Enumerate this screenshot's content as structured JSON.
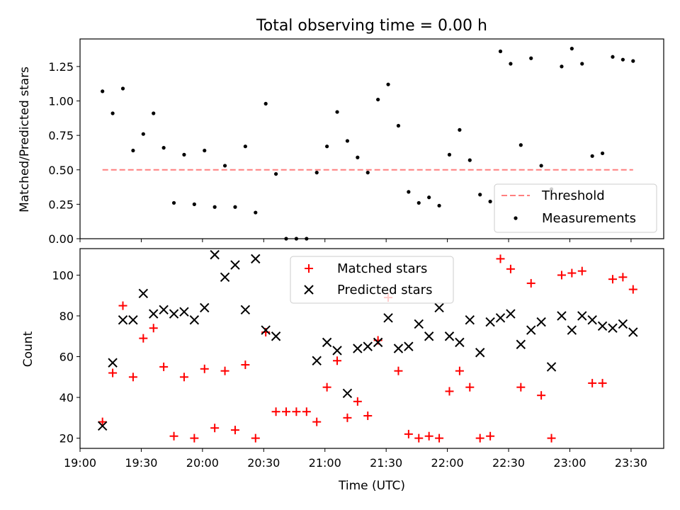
{
  "figure": {
    "title": "Total observing time = 0.00 h",
    "xlabel": "Time (UTC)"
  },
  "colors": {
    "threshold": "#ff7f7f",
    "measurements": "#000000",
    "matched": "#ff0000",
    "predicted": "#000000"
  },
  "chart_data": [
    {
      "type": "scatter",
      "name": "ratio",
      "title": "Total observing time = 0.00 h",
      "ylabel": "Matched/Predicted stars",
      "xlabel": "",
      "x_unit": "time HH:MM UTC",
      "xlim": [
        "19:00",
        "23:46"
      ],
      "ylim": [
        0,
        1.45
      ],
      "yticks": [
        "0.00",
        "0.25",
        "0.50",
        "0.75",
        "1.00",
        "1.25"
      ],
      "legend": {
        "position": "lower-right",
        "entries": [
          "Threshold",
          "Measurements"
        ]
      },
      "threshold": {
        "label": "Threshold",
        "value": 0.5,
        "x_start": "19:11",
        "x_end": "23:31",
        "style": "dashed"
      },
      "series": [
        {
          "name": "Measurements",
          "points": [
            [
              "19:11",
              1.07
            ],
            [
              "19:16",
              0.91
            ],
            [
              "19:21",
              1.09
            ],
            [
              "19:26",
              0.64
            ],
            [
              "19:31",
              0.76
            ],
            [
              "19:36",
              0.91
            ],
            [
              "19:41",
              0.66
            ],
            [
              "19:46",
              0.26
            ],
            [
              "19:51",
              0.61
            ],
            [
              "19:56",
              0.25
            ],
            [
              "20:01",
              0.64
            ],
            [
              "20:06",
              0.23
            ],
            [
              "20:11",
              0.53
            ],
            [
              "20:16",
              0.23
            ],
            [
              "20:21",
              0.67
            ],
            [
              "20:26",
              0.19
            ],
            [
              "20:31",
              0.98
            ],
            [
              "20:36",
              0.47
            ],
            [
              "20:41",
              0.0
            ],
            [
              "20:46",
              0.0
            ],
            [
              "20:51",
              0.0
            ],
            [
              "20:56",
              0.48
            ],
            [
              "21:01",
              0.67
            ],
            [
              "21:06",
              0.92
            ],
            [
              "21:11",
              0.71
            ],
            [
              "21:16",
              0.59
            ],
            [
              "21:21",
              0.48
            ],
            [
              "21:26",
              1.01
            ],
            [
              "21:31",
              1.12
            ],
            [
              "21:36",
              0.82
            ],
            [
              "21:41",
              0.34
            ],
            [
              "21:46",
              0.26
            ],
            [
              "21:51",
              0.3
            ],
            [
              "21:56",
              0.24
            ],
            [
              "22:01",
              0.61
            ],
            [
              "22:06",
              0.79
            ],
            [
              "22:11",
              0.57
            ],
            [
              "22:16",
              0.32
            ],
            [
              "22:21",
              0.27
            ],
            [
              "22:26",
              1.36
            ],
            [
              "22:31",
              1.27
            ],
            [
              "22:36",
              0.68
            ],
            [
              "22:41",
              1.31
            ],
            [
              "22:46",
              0.53
            ],
            [
              "22:51",
              0.36
            ],
            [
              "22:56",
              1.25
            ],
            [
              "23:01",
              1.38
            ],
            [
              "23:06",
              1.27
            ],
            [
              "23:11",
              0.6
            ],
            [
              "23:16",
              0.62
            ],
            [
              "23:21",
              1.32
            ],
            [
              "23:26",
              1.3
            ],
            [
              "23:31",
              1.29
            ]
          ]
        }
      ]
    },
    {
      "type": "scatter",
      "name": "counts",
      "title": "",
      "ylabel": "Count",
      "xlabel": "Time (UTC)",
      "xlim": [
        "19:00",
        "23:46"
      ],
      "ylim": [
        15,
        113
      ],
      "yticks": [
        "20",
        "40",
        "60",
        "80",
        "100"
      ],
      "xticks": [
        "19:00",
        "19:30",
        "20:00",
        "20:30",
        "21:00",
        "21:30",
        "22:00",
        "22:30",
        "23:00",
        "23:30"
      ],
      "legend": {
        "position": "top-center",
        "entries": [
          "Matched stars",
          "Predicted stars"
        ]
      },
      "series": [
        {
          "name": "Matched stars",
          "marker": "+",
          "points": [
            [
              "19:11",
              28
            ],
            [
              "19:16",
              52
            ],
            [
              "19:21",
              85
            ],
            [
              "19:26",
              50
            ],
            [
              "19:31",
              69
            ],
            [
              "19:36",
              74
            ],
            [
              "19:41",
              55
            ],
            [
              "19:46",
              21
            ],
            [
              "19:51",
              50
            ],
            [
              "19:56",
              20
            ],
            [
              "20:01",
              54
            ],
            [
              "20:06",
              25
            ],
            [
              "20:11",
              53
            ],
            [
              "20:16",
              24
            ],
            [
              "20:21",
              56
            ],
            [
              "20:26",
              20
            ],
            [
              "20:31",
              72
            ],
            [
              "20:36",
              33
            ],
            [
              "20:41",
              33
            ],
            [
              "20:46",
              33
            ],
            [
              "20:51",
              33
            ],
            [
              "20:56",
              28
            ],
            [
              "21:01",
              45
            ],
            [
              "21:06",
              58
            ],
            [
              "21:11",
              30
            ],
            [
              "21:16",
              38
            ],
            [
              "21:21",
              31
            ],
            [
              "21:26",
              68
            ],
            [
              "21:31",
              89
            ],
            [
              "21:36",
              53
            ],
            [
              "21:41",
              22
            ],
            [
              "21:46",
              20
            ],
            [
              "21:51",
              21
            ],
            [
              "21:56",
              20
            ],
            [
              "22:01",
              43
            ],
            [
              "22:06",
              53
            ],
            [
              "22:11",
              45
            ],
            [
              "22:16",
              20
            ],
            [
              "22:21",
              21
            ],
            [
              "22:26",
              108
            ],
            [
              "22:31",
              103
            ],
            [
              "22:36",
              45
            ],
            [
              "22:41",
              96
            ],
            [
              "22:46",
              41
            ],
            [
              "22:51",
              20
            ],
            [
              "22:56",
              100
            ],
            [
              "23:01",
              101
            ],
            [
              "23:06",
              102
            ],
            [
              "23:11",
              47
            ],
            [
              "23:16",
              47
            ],
            [
              "23:21",
              98
            ],
            [
              "23:26",
              99
            ],
            [
              "23:31",
              93
            ]
          ]
        },
        {
          "name": "Predicted stars",
          "marker": "x",
          "points": [
            [
              "19:11",
              26
            ],
            [
              "19:16",
              57
            ],
            [
              "19:21",
              78
            ],
            [
              "19:26",
              78
            ],
            [
              "19:31",
              91
            ],
            [
              "19:36",
              81
            ],
            [
              "19:41",
              83
            ],
            [
              "19:46",
              81
            ],
            [
              "19:51",
              82
            ],
            [
              "19:56",
              78
            ],
            [
              "20:01",
              84
            ],
            [
              "20:06",
              110
            ],
            [
              "20:11",
              99
            ],
            [
              "20:16",
              105
            ],
            [
              "20:21",
              83
            ],
            [
              "20:26",
              108
            ],
            [
              "20:31",
              73
            ],
            [
              "20:36",
              70
            ],
            [
              "20:56",
              58
            ],
            [
              "21:01",
              67
            ],
            [
              "21:06",
              63
            ],
            [
              "21:11",
              42
            ],
            [
              "21:16",
              64
            ],
            [
              "21:21",
              65
            ],
            [
              "21:26",
              67
            ],
            [
              "21:31",
              79
            ],
            [
              "21:36",
              64
            ],
            [
              "21:41",
              65
            ],
            [
              "21:46",
              76
            ],
            [
              "21:51",
              70
            ],
            [
              "21:56",
              84
            ],
            [
              "22:01",
              70
            ],
            [
              "22:06",
              67
            ],
            [
              "22:11",
              78
            ],
            [
              "22:16",
              62
            ],
            [
              "22:21",
              77
            ],
            [
              "22:26",
              79
            ],
            [
              "22:31",
              81
            ],
            [
              "22:36",
              66
            ],
            [
              "22:41",
              73
            ],
            [
              "22:46",
              77
            ],
            [
              "22:51",
              55
            ],
            [
              "22:56",
              80
            ],
            [
              "23:01",
              73
            ],
            [
              "23:06",
              80
            ],
            [
              "23:11",
              78
            ],
            [
              "23:16",
              75
            ],
            [
              "23:21",
              74
            ],
            [
              "23:26",
              76
            ],
            [
              "23:31",
              72
            ]
          ]
        }
      ]
    }
  ]
}
